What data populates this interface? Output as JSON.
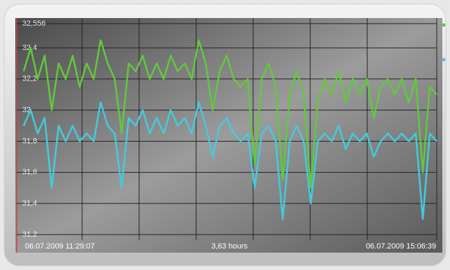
{
  "chart_data": {
    "type": "line",
    "start_label": "06.07.2009 11:29:07",
    "duration_label": "3,63 hours",
    "end_label": "06.07.2009 15:06:39",
    "ylim": [
      31.2,
      32.556
    ],
    "yticks": [
      {
        "value": 31.2,
        "label": "31,2"
      },
      {
        "value": 31.4,
        "label": "31,4"
      },
      {
        "value": 31.6,
        "label": "31,6"
      },
      {
        "value": 31.8,
        "label": "31,8"
      },
      32,
      {
        "value": 32.2,
        "label": "32,2"
      },
      {
        "value": 32.4,
        "label": "32,4"
      },
      {
        "value": 32.556,
        "label": "32,556"
      }
    ],
    "grid": true,
    "series": [
      {
        "color": "#62c93c",
        "values": [
          32.25,
          32.4,
          32.2,
          32.35,
          32.0,
          32.3,
          32.2,
          32.35,
          32.15,
          32.3,
          32.2,
          32.45,
          32.3,
          32.2,
          31.85,
          32.3,
          32.25,
          32.35,
          32.2,
          32.3,
          32.2,
          32.35,
          32.25,
          32.3,
          32.2,
          32.45,
          32.3,
          32.0,
          32.25,
          32.35,
          32.2,
          32.15,
          32.2,
          31.65,
          32.2,
          32.3,
          32.15,
          31.55,
          32.1,
          32.25,
          32.1,
          31.5,
          32.05,
          32.2,
          32.1,
          32.25,
          32.05,
          32.2,
          32.1,
          32.2,
          31.95,
          32.15,
          32.2,
          32.1,
          32.2,
          32.05,
          32.2,
          31.6,
          32.15,
          32.1
        ]
      },
      {
        "color": "#44cbdc",
        "values": [
          31.9,
          32.0,
          31.85,
          31.95,
          31.5,
          31.9,
          31.8,
          31.9,
          31.8,
          31.85,
          31.8,
          32.05,
          31.9,
          31.85,
          31.5,
          31.95,
          31.9,
          32.0,
          31.85,
          31.95,
          31.85,
          32.0,
          31.9,
          31.95,
          31.85,
          32.05,
          31.9,
          31.7,
          31.9,
          31.95,
          31.85,
          31.8,
          31.85,
          31.5,
          31.85,
          31.9,
          31.8,
          31.3,
          31.8,
          31.9,
          31.8,
          31.4,
          31.8,
          31.85,
          31.8,
          31.9,
          31.75,
          31.85,
          31.8,
          31.85,
          31.7,
          31.8,
          31.85,
          31.8,
          31.85,
          31.8,
          31.85,
          31.3,
          31.85,
          31.8
        ]
      }
    ]
  }
}
